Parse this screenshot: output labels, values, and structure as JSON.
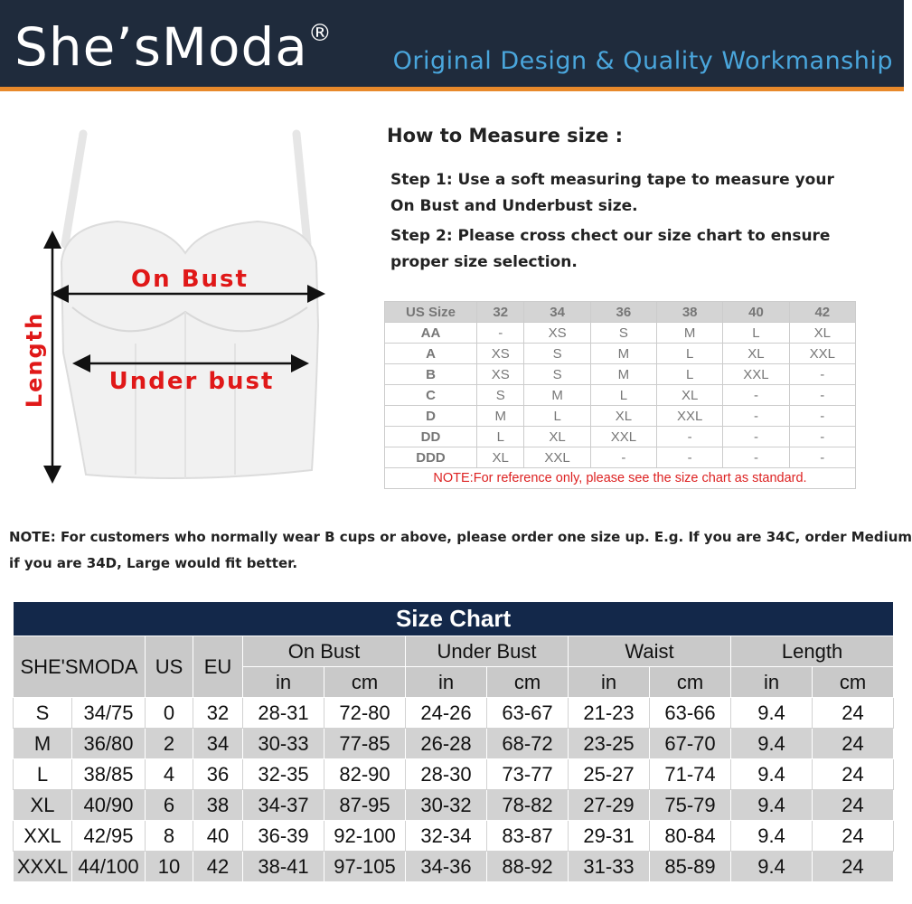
{
  "header": {
    "brand": "She’sModa",
    "registered": "®",
    "tagline": "Original Design & Quality Workmanship",
    "colors": {
      "bg": "#1f2b3c",
      "accent": "#e8892b",
      "tagline": "#4aa6dc"
    }
  },
  "diagram": {
    "on_bust": "On Bust",
    "under_bust": "Under bust",
    "length": "Length"
  },
  "howto": {
    "title": "How to Measure size :",
    "step1": "Step 1: Use a soft measuring tape to measure your On Bust and Underbust size.",
    "step2": "Step 2: Please cross chect our size chart to ensure proper size selection."
  },
  "cup_table": {
    "header": [
      "US Size",
      "32",
      "34",
      "36",
      "38",
      "40",
      "42"
    ],
    "rows": [
      [
        "AA",
        "-",
        "XS",
        "S",
        "M",
        "L",
        "XL"
      ],
      [
        "A",
        "XS",
        "S",
        "M",
        "L",
        "XL",
        "XXL"
      ],
      [
        "B",
        "XS",
        "S",
        "M",
        "L",
        "XXL",
        "-"
      ],
      [
        "C",
        "S",
        "M",
        "L",
        "XL",
        "-",
        "-"
      ],
      [
        "D",
        "M",
        "L",
        "XL",
        "XXL",
        "-",
        "-"
      ],
      [
        "DD",
        "L",
        "XL",
        "XXL",
        "-",
        "-",
        "-"
      ],
      [
        "DDD",
        "XL",
        "XXL",
        "-",
        "-",
        "-",
        "-"
      ]
    ],
    "note": "NOTE:For reference only, please see the size chart as standard."
  },
  "note": {
    "line1": "NOTE: For customers who normally wear B cups or above, please order one size up. E.g. If you are 34C, order Medium",
    "line2": "if you are 34D, Large would fit better."
  },
  "size_chart": {
    "title": "Size Chart",
    "col_brand": "SHE'SMODA",
    "col_us": "US",
    "col_eu": "EU",
    "groups": [
      "On Bust",
      "Under Bust",
      "Waist",
      "Length"
    ],
    "units": [
      "in",
      "cm",
      "in",
      "cm",
      "in",
      "cm",
      "in",
      "cm"
    ],
    "rows": [
      [
        "S",
        "34/75",
        "0",
        "32",
        "28-31",
        "72-80",
        "24-26",
        "63-67",
        "21-23",
        "63-66",
        "9.4",
        "24"
      ],
      [
        "M",
        "36/80",
        "2",
        "34",
        "30-33",
        "77-85",
        "26-28",
        "68-72",
        "23-25",
        "67-70",
        "9.4",
        "24"
      ],
      [
        "L",
        "38/85",
        "4",
        "36",
        "32-35",
        "82-90",
        "28-30",
        "73-77",
        "25-27",
        "71-74",
        "9.4",
        "24"
      ],
      [
        "XL",
        "40/90",
        "6",
        "38",
        "34-37",
        "87-95",
        "30-32",
        "78-82",
        "27-29",
        "75-79",
        "9.4",
        "24"
      ],
      [
        "XXL",
        "42/95",
        "8",
        "40",
        "36-39",
        "92-100",
        "32-34",
        "83-87",
        "29-31",
        "80-84",
        "9.4",
        "24"
      ],
      [
        "XXXL",
        "44/100",
        "10",
        "42",
        "38-41",
        "97-105",
        "34-36",
        "88-92",
        "31-33",
        "85-89",
        "9.4",
        "24"
      ]
    ]
  }
}
